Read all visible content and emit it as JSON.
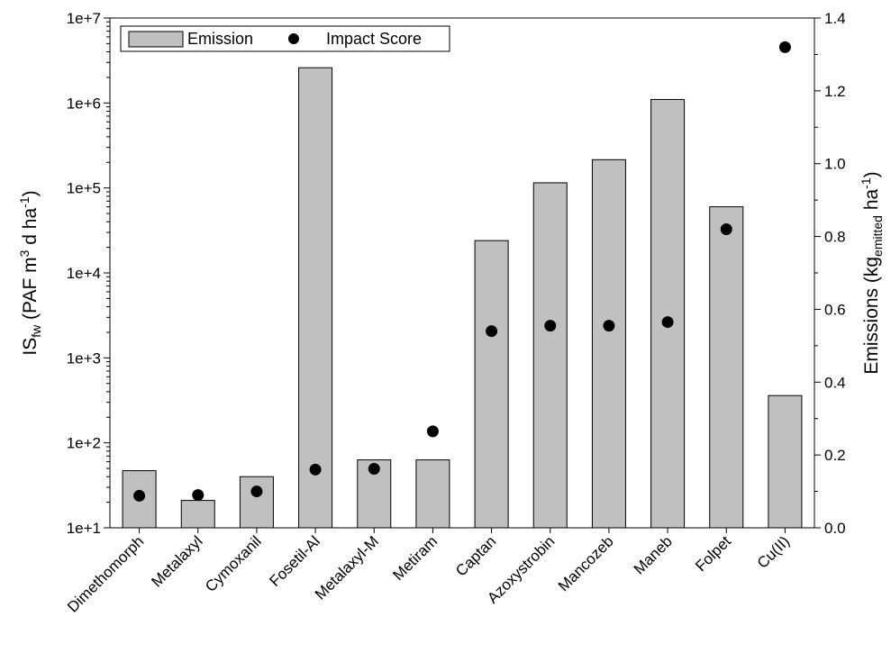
{
  "chart_data": {
    "type": "bar",
    "categories": [
      "Dimethomorph",
      "Metalaxyl",
      "Cymoxanil",
      "Fosetil-Al",
      "Metalaxyl-M",
      "Metiram",
      "Captan",
      "Azoxystrobin",
      "Mancozeb",
      "Maneb",
      "Folpet",
      "Cu(II)"
    ],
    "left_axis": {
      "label_main": "IS",
      "label_subscript": "fw",
      "label_rest": " (PAF m",
      "label_sup1": "3",
      "label_rest2": " d ha",
      "label_sup2": "-1",
      "label_end": ")",
      "scale": "log",
      "ylim": [
        10,
        10000000
      ],
      "ticks": [
        10,
        100,
        1000,
        10000,
        100000,
        1000000,
        10000000
      ],
      "tick_labels": [
        "1e+1",
        "1e+2",
        "1e+3",
        "1e+4",
        "1e+5",
        "1e+6",
        "1e+7"
      ]
    },
    "right_axis": {
      "label_main": "Emissions (kg",
      "label_subscript": "emitted",
      "label_rest": " ha",
      "label_sup": "-1",
      "label_end": ")",
      "scale": "linear",
      "ylim": [
        0,
        1.4
      ],
      "ticks": [
        0,
        0.2,
        0.4,
        0.6,
        0.8,
        1.0,
        1.2,
        1.4
      ],
      "tick_labels": [
        "0.0",
        "0.2",
        "0.4",
        "0.6",
        "0.8",
        "1.0",
        "1.2",
        "1.4"
      ]
    },
    "series": [
      {
        "name": "Emission",
        "kind": "bar",
        "axis": "left",
        "values": [
          47,
          21,
          40,
          2600000,
          63,
          63,
          24000,
          115000,
          215000,
          1100000,
          60000,
          360
        ],
        "color": "#c0c0c0"
      },
      {
        "name": "Impact Score",
        "kind": "point",
        "axis": "right",
        "values": [
          0.088,
          0.09,
          0.1,
          0.16,
          0.162,
          0.265,
          0.54,
          0.555,
          0.555,
          0.565,
          0.82,
          1.32
        ],
        "color": "#000000"
      }
    ],
    "legend": {
      "placement": "top-left",
      "items": [
        "Emission",
        "Impact Score"
      ]
    },
    "grid": false
  }
}
